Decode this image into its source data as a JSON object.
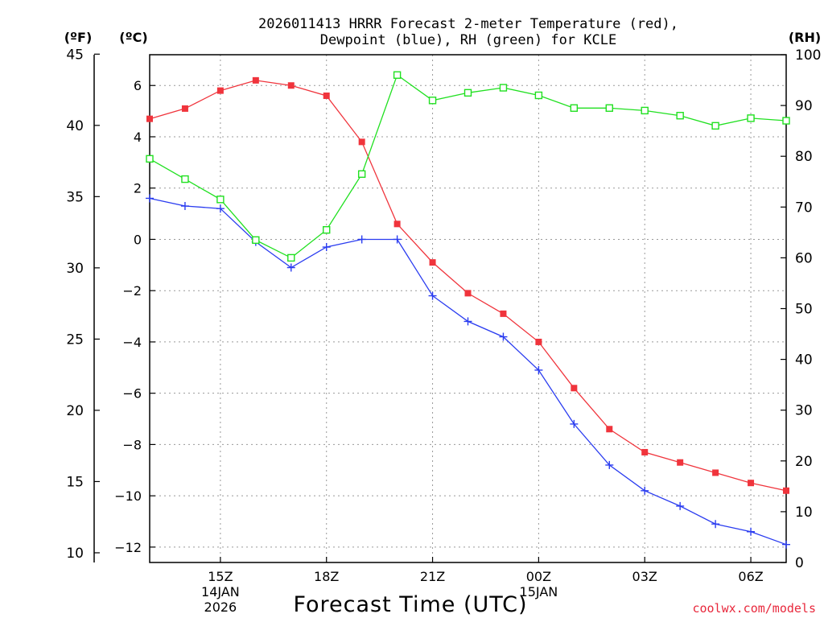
{
  "chart_data": {
    "type": "line",
    "title_line1": "2026011413 HRRR Forecast 2-meter Temperature (red),",
    "title_line2": "Dewpoint (blue), RH (green) for KCLE",
    "xlabel": "Forecast Time (UTC)",
    "credit": "coolwx.com/models",
    "left_unit_f": "(ºF)",
    "left_unit_c": "(ºC)",
    "right_unit": "(RH)",
    "hours": [
      13,
      14,
      15,
      16,
      17,
      18,
      19,
      20,
      21,
      22,
      23,
      24,
      25,
      26,
      27,
      28,
      29,
      30,
      31
    ],
    "x_ticks": [
      {
        "hour": 15,
        "label": "15Z"
      },
      {
        "hour": 18,
        "label": "18Z"
      },
      {
        "hour": 21,
        "label": "21Z"
      },
      {
        "hour": 24,
        "label": "00Z"
      },
      {
        "hour": 27,
        "label": "03Z"
      },
      {
        "hour": 30,
        "label": "06Z"
      }
    ],
    "date_labels": [
      {
        "hour": 15,
        "line1": "14JAN",
        "line2": "2026"
      },
      {
        "hour": 24,
        "line1": "15JAN",
        "line2": ""
      }
    ],
    "xlim": [
      13,
      31
    ],
    "ylim_c": [
      -12.6,
      7.2
    ],
    "ylim_f": [
      9.32,
      44.96
    ],
    "ylim_rh": [
      0,
      100
    ],
    "c_ticks": [
      6,
      4,
      2,
      0,
      -2,
      -4,
      -6,
      -8,
      -10,
      -12
    ],
    "c_tick_labels": [
      "6",
      "4",
      "2",
      "0",
      "−2",
      "−4",
      "−6",
      "−8",
      "−10",
      "−12"
    ],
    "f_ticks": [
      45,
      40,
      35,
      30,
      25,
      20,
      15,
      10
    ],
    "f_tick_labels": [
      "45",
      "40",
      "35",
      "30",
      "25",
      "20",
      "15",
      "10"
    ],
    "rh_ticks": [
      100,
      90,
      80,
      70,
      60,
      50,
      40,
      30,
      20,
      10,
      0
    ],
    "rh_tick_labels": [
      "100",
      "90",
      "80",
      "70",
      "60",
      "50",
      "40",
      "30",
      "20",
      "10",
      "0"
    ],
    "series": [
      {
        "name": "Temperature",
        "axis": "celsius",
        "color": "#f0343c",
        "marker": "filled-square",
        "values": [
          4.7,
          5.1,
          5.8,
          6.2,
          6.0,
          5.6,
          3.8,
          0.6,
          -0.9,
          -2.1,
          -2.9,
          -4.0,
          -5.8,
          -7.4,
          -8.3,
          -8.7,
          -9.1,
          -9.5,
          -9.8
        ]
      },
      {
        "name": "Dewpoint",
        "axis": "celsius",
        "color": "#2a3cf0",
        "marker": "plus",
        "values": [
          1.6,
          1.3,
          1.2,
          -0.1,
          -1.1,
          -0.3,
          0.0,
          0.0,
          -2.2,
          -3.2,
          -3.8,
          -5.1,
          -7.2,
          -8.8,
          -9.8,
          -10.4,
          -11.1,
          -11.4,
          -11.9
        ]
      },
      {
        "name": "RH",
        "axis": "rh",
        "color": "#20e020",
        "marker": "open-square",
        "values": [
          79.5,
          75.5,
          71.5,
          63.5,
          60.0,
          65.5,
          76.5,
          96.0,
          91.0,
          92.5,
          93.5,
          92.0,
          89.5,
          89.5,
          89.0,
          88.0,
          86.0,
          87.5,
          87.0
        ]
      }
    ]
  }
}
